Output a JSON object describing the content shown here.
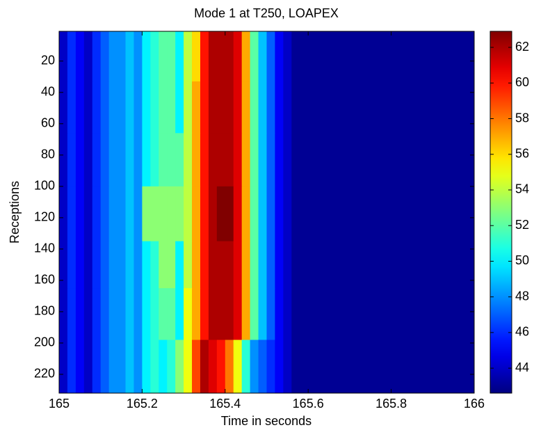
{
  "chart_data": {
    "type": "heatmap",
    "title": "Mode 1 at T250, LOAPEX",
    "xlabel": "Time in seconds",
    "ylabel": "Receptions",
    "x_edges": [
      165,
      165.02,
      165.04,
      165.06,
      165.08,
      165.1,
      165.12,
      165.14,
      165.16,
      165.18,
      165.2,
      165.22,
      165.24,
      165.26,
      165.28,
      165.3,
      165.32,
      165.34,
      165.36,
      165.38,
      165.4,
      165.42,
      165.44,
      165.46,
      165.48,
      165.5,
      165.52,
      165.54,
      165.56,
      166
    ],
    "y_edges": [
      1,
      33,
      66,
      100,
      135,
      165,
      198,
      232
    ],
    "values": [
      [
        44,
        46,
        45,
        44,
        46,
        47,
        48,
        48,
        49,
        48,
        50,
        51,
        52,
        52,
        50,
        54,
        56,
        60,
        62,
        62,
        62,
        61,
        57,
        52,
        49,
        47,
        45,
        44,
        43
      ],
      [
        44,
        46,
        45,
        44,
        46,
        47,
        48,
        48,
        49,
        48,
        50,
        51,
        52,
        52,
        50,
        54,
        57,
        60,
        62,
        62,
        62,
        61,
        57,
        52,
        49,
        47,
        45,
        44,
        43
      ],
      [
        44,
        46,
        45,
        44,
        46,
        47,
        48,
        48,
        49,
        48,
        50,
        51,
        52,
        52,
        52,
        54,
        57,
        60,
        62,
        62,
        62,
        61,
        57,
        52,
        49,
        47,
        45,
        44,
        43
      ],
      [
        44,
        46,
        45,
        44,
        46,
        47,
        48,
        48,
        49,
        48,
        53,
        53,
        53,
        53,
        53,
        54,
        57,
        60,
        62,
        63,
        63,
        61,
        57,
        52,
        49,
        47,
        45,
        44,
        43
      ],
      [
        44,
        46,
        45,
        44,
        46,
        47,
        48,
        48,
        49,
        48,
        50,
        51,
        53,
        53,
        50,
        54,
        57,
        60,
        62,
        62,
        62,
        61,
        57,
        52,
        49,
        47,
        45,
        44,
        43
      ],
      [
        44,
        46,
        45,
        44,
        46,
        47,
        48,
        48,
        49,
        48,
        50,
        51,
        52,
        52,
        50,
        55,
        57,
        60,
        62,
        62,
        62,
        61,
        57,
        52,
        49,
        47,
        45,
        44,
        43
      ],
      [
        44,
        46,
        45,
        44,
        46,
        47,
        48,
        48,
        49,
        48,
        50,
        51,
        50,
        51,
        53,
        55,
        59,
        62,
        61,
        60,
        58,
        55,
        51,
        48,
        47,
        46,
        45,
        44,
        43
      ]
    ],
    "clim": [
      42.6,
      62.9
    ],
    "colormap": "jet",
    "xlim": [
      165,
      166
    ],
    "xticks": [
      165,
      165.2,
      165.4,
      165.6,
      165.8,
      166
    ],
    "ylim": [
      1,
      232
    ],
    "yticks": [
      20,
      40,
      60,
      80,
      100,
      120,
      140,
      160,
      180,
      200,
      220
    ],
    "y_reversed": true,
    "cticks": [
      44,
      46,
      48,
      50,
      52,
      54,
      56,
      58,
      60,
      62
    ]
  }
}
